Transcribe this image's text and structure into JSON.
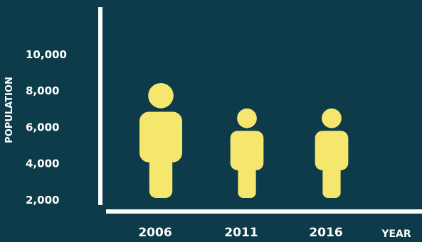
{
  "colors": {
    "background": "#0d3b4a",
    "figure": "#f5e66e",
    "axis": "#ffffff",
    "text": "#ffffff"
  },
  "chart_data": {
    "type": "bar",
    "style": "pictograph-person",
    "title": "",
    "xlabel": "YEAR",
    "ylabel": "POPULATION",
    "categories": [
      "2006",
      "2011",
      "2016"
    ],
    "values": [
      8400,
      7000,
      7000
    ],
    "yticks": [
      2000,
      4000,
      6000,
      8000,
      10000
    ],
    "ytick_labels": [
      "2,000",
      "4,000",
      "6,000",
      "8,000",
      "10,000"
    ],
    "ylim": [
      0,
      10000
    ],
    "grid": false,
    "legend": "none"
  }
}
